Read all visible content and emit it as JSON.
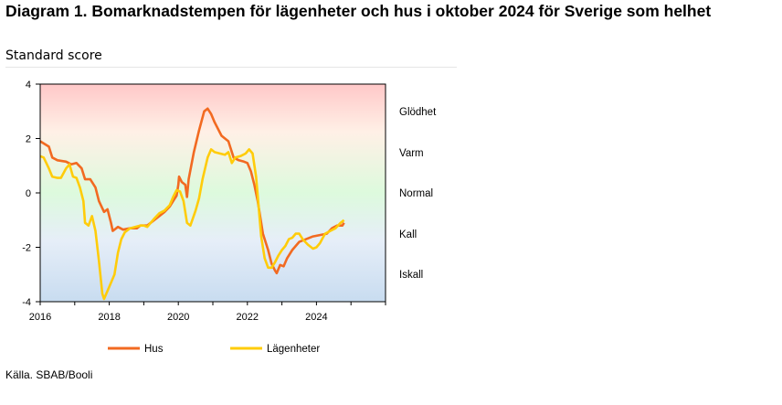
{
  "title": "Diagram 1. Bomarknadstempen för lägenheter och hus i oktober 2024 för Sverige som helhet",
  "subtitle": "Standard score",
  "source": "Källa. SBAB/Booli",
  "colors": {
    "hus": "#f26a21",
    "lagenheter": "#ffcc0a",
    "hot": "#ffc8c8",
    "warm": "#fff0e6",
    "normal": "#ddfadd",
    "cold": "#e6eef8",
    "icecold": "#c8dcf0"
  },
  "chart_data": {
    "type": "line",
    "title": "Diagram 1. Bomarknadstempen för lägenheter och hus i oktober 2024 för Sverige som helhet",
    "ylabel": "Standard score",
    "xlim": [
      2016,
      2026
    ],
    "ylim": [
      -4,
      4
    ],
    "x_ticks": [
      "2016",
      "2018",
      "2020",
      "2022",
      "2024"
    ],
    "y_ticks": [
      "4",
      "2",
      "0",
      "-2",
      "-4"
    ],
    "zones": [
      "Glödhet",
      "Varm",
      "Normal",
      "Kall",
      "Iskall"
    ],
    "legend_position": "bottom",
    "series": [
      {
        "name": "Hus",
        "color": "#f26a21",
        "points": [
          [
            2016.0,
            1.9
          ],
          [
            2016.25,
            1.7
          ],
          [
            2016.35,
            1.3
          ],
          [
            2016.5,
            1.2
          ],
          [
            2016.75,
            1.15
          ],
          [
            2016.9,
            1.05
          ],
          [
            2017.05,
            1.1
          ],
          [
            2017.2,
            0.9
          ],
          [
            2017.3,
            0.5
          ],
          [
            2017.45,
            0.5
          ],
          [
            2017.6,
            0.2
          ],
          [
            2017.7,
            -0.3
          ],
          [
            2017.85,
            -0.7
          ],
          [
            2017.95,
            -0.6
          ],
          [
            2018.05,
            -1.1
          ],
          [
            2018.1,
            -1.4
          ],
          [
            2018.25,
            -1.25
          ],
          [
            2018.4,
            -1.35
          ],
          [
            2018.6,
            -1.3
          ],
          [
            2018.8,
            -1.3
          ],
          [
            2018.9,
            -1.2
          ],
          [
            2019.1,
            -1.2
          ],
          [
            2019.25,
            -1.05
          ],
          [
            2019.4,
            -0.9
          ],
          [
            2019.6,
            -0.7
          ],
          [
            2019.75,
            -0.5
          ],
          [
            2019.85,
            -0.3
          ],
          [
            2019.95,
            -0.1
          ],
          [
            2020.0,
            0.3
          ],
          [
            2020.02,
            0.6
          ],
          [
            2020.1,
            0.4
          ],
          [
            2020.2,
            0.3
          ],
          [
            2020.25,
            -0.15
          ],
          [
            2020.3,
            0.5
          ],
          [
            2020.45,
            1.5
          ],
          [
            2020.6,
            2.3
          ],
          [
            2020.75,
            3.0
          ],
          [
            2020.85,
            3.1
          ],
          [
            2020.95,
            2.9
          ],
          [
            2021.05,
            2.6
          ],
          [
            2021.25,
            2.1
          ],
          [
            2021.45,
            1.9
          ],
          [
            2021.6,
            1.3
          ],
          [
            2021.75,
            1.2
          ],
          [
            2021.9,
            1.15
          ],
          [
            2022.0,
            1.1
          ],
          [
            2022.1,
            0.8
          ],
          [
            2022.2,
            0.3
          ],
          [
            2022.3,
            -0.3
          ],
          [
            2022.45,
            -1.5
          ],
          [
            2022.6,
            -2.1
          ],
          [
            2022.7,
            -2.6
          ],
          [
            2022.8,
            -2.85
          ],
          [
            2022.85,
            -2.95
          ],
          [
            2022.95,
            -2.65
          ],
          [
            2023.05,
            -2.7
          ],
          [
            2023.15,
            -2.4
          ],
          [
            2023.3,
            -2.1
          ],
          [
            2023.5,
            -1.8
          ],
          [
            2023.7,
            -1.7
          ],
          [
            2023.9,
            -1.6
          ],
          [
            2024.1,
            -1.55
          ],
          [
            2024.3,
            -1.5
          ],
          [
            2024.45,
            -1.3
          ],
          [
            2024.6,
            -1.2
          ],
          [
            2024.75,
            -1.2
          ],
          [
            2024.8,
            -1.1
          ]
        ]
      },
      {
        "name": "Lägenheter",
        "color": "#ffcc0a",
        "points": [
          [
            2016.0,
            1.35
          ],
          [
            2016.1,
            1.3
          ],
          [
            2016.25,
            0.9
          ],
          [
            2016.35,
            0.6
          ],
          [
            2016.5,
            0.55
          ],
          [
            2016.6,
            0.55
          ],
          [
            2016.75,
            0.9
          ],
          [
            2016.85,
            1.05
          ],
          [
            2016.95,
            0.6
          ],
          [
            2017.05,
            0.55
          ],
          [
            2017.15,
            0.2
          ],
          [
            2017.25,
            -0.3
          ],
          [
            2017.3,
            -1.1
          ],
          [
            2017.4,
            -1.2
          ],
          [
            2017.5,
            -0.85
          ],
          [
            2017.6,
            -1.4
          ],
          [
            2017.7,
            -2.5
          ],
          [
            2017.8,
            -3.7
          ],
          [
            2017.85,
            -3.9
          ],
          [
            2017.95,
            -3.6
          ],
          [
            2018.05,
            -3.3
          ],
          [
            2018.15,
            -3.0
          ],
          [
            2018.25,
            -2.2
          ],
          [
            2018.35,
            -1.7
          ],
          [
            2018.45,
            -1.45
          ],
          [
            2018.6,
            -1.3
          ],
          [
            2018.75,
            -1.25
          ],
          [
            2018.9,
            -1.2
          ],
          [
            2019.0,
            -1.2
          ],
          [
            2019.1,
            -1.25
          ],
          [
            2019.2,
            -1.1
          ],
          [
            2019.3,
            -0.95
          ],
          [
            2019.45,
            -0.75
          ],
          [
            2019.6,
            -0.65
          ],
          [
            2019.75,
            -0.45
          ],
          [
            2019.85,
            -0.15
          ],
          [
            2019.95,
            0.1
          ],
          [
            2020.05,
            0.05
          ],
          [
            2020.15,
            -0.3
          ],
          [
            2020.25,
            -1.1
          ],
          [
            2020.35,
            -1.2
          ],
          [
            2020.5,
            -0.65
          ],
          [
            2020.6,
            -0.2
          ],
          [
            2020.7,
            0.5
          ],
          [
            2020.85,
            1.3
          ],
          [
            2020.95,
            1.6
          ],
          [
            2021.05,
            1.5
          ],
          [
            2021.2,
            1.45
          ],
          [
            2021.35,
            1.4
          ],
          [
            2021.45,
            1.5
          ],
          [
            2021.55,
            1.1
          ],
          [
            2021.65,
            1.3
          ],
          [
            2021.8,
            1.35
          ],
          [
            2021.95,
            1.45
          ],
          [
            2022.05,
            1.6
          ],
          [
            2022.15,
            1.45
          ],
          [
            2022.25,
            0.6
          ],
          [
            2022.3,
            -0.1
          ],
          [
            2022.4,
            -1.6
          ],
          [
            2022.5,
            -2.4
          ],
          [
            2022.6,
            -2.75
          ],
          [
            2022.7,
            -2.75
          ],
          [
            2022.8,
            -2.55
          ],
          [
            2022.9,
            -2.3
          ],
          [
            2023.0,
            -2.1
          ],
          [
            2023.1,
            -1.95
          ],
          [
            2023.2,
            -1.7
          ],
          [
            2023.3,
            -1.65
          ],
          [
            2023.4,
            -1.5
          ],
          [
            2023.5,
            -1.5
          ],
          [
            2023.6,
            -1.7
          ],
          [
            2023.75,
            -1.9
          ],
          [
            2023.9,
            -2.05
          ],
          [
            2024.0,
            -2.0
          ],
          [
            2024.1,
            -1.85
          ],
          [
            2024.25,
            -1.5
          ],
          [
            2024.4,
            -1.4
          ],
          [
            2024.55,
            -1.3
          ],
          [
            2024.7,
            -1.1
          ],
          [
            2024.8,
            -1.0
          ]
        ]
      }
    ]
  }
}
